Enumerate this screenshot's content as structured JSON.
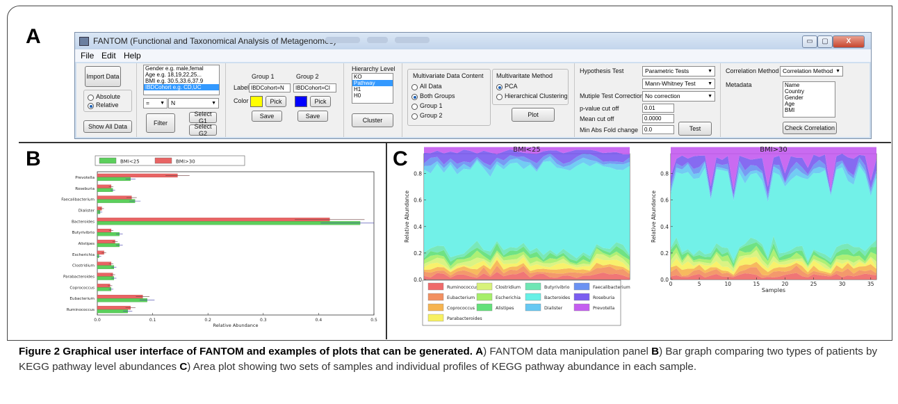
{
  "panels": {
    "a": "A",
    "b": "B",
    "c": "C"
  },
  "window": {
    "title": "FANTOM (Functional and Taxonomical Analysis of Metagenomes)",
    "menu": [
      "File",
      "Edit",
      "Help"
    ],
    "controls": {
      "minimize": "▭",
      "maximize": "▢",
      "close": "X"
    }
  },
  "data_panel": {
    "import_label": "Import Data",
    "absolute_label": "Absolute",
    "relative_label": "Relative",
    "show_all_label": "Show All Data",
    "metadata_list": [
      "Gender e.g. male,femal",
      "Age e.g. 18,19,22,25...",
      "BMI e.g. 30.5,33.6,37.9",
      "IBDCohort e.g. CD,UC"
    ],
    "operator_value": "=",
    "filter_value": "N",
    "filter_label": "Filter",
    "select_g1_label": "Select G1",
    "select_g2_label": "Select G2"
  },
  "groups": {
    "group1_label": "Group 1",
    "group2_label": "Group 2",
    "label_caption": "Label",
    "color_caption": "Color",
    "group1_value": "IBDCohort=N",
    "group2_value": "IBDCohort=CI",
    "pick_label": "Pick",
    "save_label": "Save",
    "group1_color": "#ffff00",
    "group2_color": "#0000ff"
  },
  "hierarchy": {
    "title": "Hierarchy Level",
    "levels": [
      "KO",
      "Pathway",
      "H1",
      "H0"
    ],
    "selected": 1,
    "cluster_label": "Cluster"
  },
  "multivariate": {
    "content_title": "Multivariate Data Content",
    "content_options": [
      "All Data",
      "Both Groups",
      "Group 1",
      "Group 2"
    ],
    "content_selected": 1,
    "method_title": "Multivaritate Method",
    "method_options": [
      "PCA",
      "Hierarchical Clustering"
    ],
    "method_selected": 0,
    "plot_label": "Plot"
  },
  "hypothesis": {
    "test_label": "Hypothesis Test",
    "test_value": "Parametric Tests",
    "test2_value": "Mann-Whitney Test",
    "correction_label": "Mutiple Test Correction",
    "correction_value": "No correction",
    "pvalue_label": "p-value cut off",
    "pvalue_value": "0.01",
    "mean_label": "Mean cut off",
    "mean_value": "0.0000",
    "fold_label": "Min Abs Fold change",
    "fold_value": "0.0",
    "test_button": "Test"
  },
  "correlation": {
    "method_label": "Correlation Method",
    "method_value": "Correlation Method",
    "metadata_label": "Metadata",
    "metadata_list": [
      "Name",
      "Country",
      "Gender",
      "Age",
      "BMI"
    ],
    "check_label": "Check Correlation"
  },
  "caption": {
    "bold": "Figure 2 Graphical user interface of FANTOM and examples of plots that can be generated.",
    "p1_letter": "A",
    "p1_text": ") FANTOM data manipulation panel ",
    "p2_letter": "B",
    "p2_text": ") Bar graph comparing two types of patients by KEGG pathway level abundances ",
    "p3_letter": "C",
    "p3_text": ") Area plot showing two sets of samples and individual profiles of KEGG pathway abundance in each sample."
  },
  "chart_data": [
    {
      "type": "bar",
      "orientation": "horizontal",
      "categories": [
        "Prevotella",
        "Roseburia",
        "Faecalibacterium",
        "Dialister",
        "Bacteroides",
        "Butyrivibrio",
        "Alistipes",
        "Escherichia",
        "Clostridium",
        "Parabacteroides",
        "Coprococcus",
        "Eubacterium",
        "Ruminococcus"
      ],
      "series": [
        {
          "name": "BMI<25",
          "color": "#5ccf5c",
          "values": [
            0.06,
            0.028,
            0.068,
            0.005,
            0.475,
            0.04,
            0.04,
            0.003,
            0.03,
            0.03,
            0.025,
            0.09,
            0.055
          ]
        },
        {
          "name": "BMI>30",
          "color": "#e86464",
          "values": [
            0.145,
            0.025,
            0.062,
            0.008,
            0.42,
            0.025,
            0.032,
            0.012,
            0.025,
            0.028,
            0.023,
            0.082,
            0.06
          ]
        }
      ],
      "xlabel": "Relative Abundance",
      "xlim": [
        0,
        0.5
      ],
      "xticks": [
        "0.0",
        "0.1",
        "0.2",
        "0.3",
        "0.4",
        "0.5"
      ],
      "legend": "top"
    },
    {
      "type": "area",
      "charts": [
        "BMI<25",
        "BMI>30"
      ],
      "ylabel": "Relative Abundance",
      "xlabel": "Samples",
      "yticks": [
        "0.0",
        "0.2",
        "0.4",
        "0.6",
        "0.8"
      ],
      "xticks": [
        "0",
        "5",
        "10",
        "15",
        "20",
        "25",
        "30",
        "35"
      ],
      "ylim": [
        0,
        1
      ],
      "xlim_left": [
        0,
        31
      ],
      "xlim_right": [
        0,
        36
      ],
      "legend": "bottom",
      "series": [
        {
          "name": "Ruminococcus",
          "color": "#ef6a6a"
        },
        {
          "name": "Eubacterium",
          "color": "#f29060"
        },
        {
          "name": "Coprococcus",
          "color": "#f6b450"
        },
        {
          "name": "Parabacteroides",
          "color": "#f7f060"
        },
        {
          "name": "Clostridium",
          "color": "#d7f27a"
        },
        {
          "name": "Escherichia",
          "color": "#a6ef6a"
        },
        {
          "name": "Alistipes",
          "color": "#63e07a"
        },
        {
          "name": "Butyrivibrio",
          "color": "#6ee6b4"
        },
        {
          "name": "Bacteroides",
          "color": "#66f0e6"
        },
        {
          "name": "Dialister",
          "color": "#66c8f2"
        },
        {
          "name": "Faecalibacterium",
          "color": "#6b92f2"
        },
        {
          "name": "Roseburia",
          "color": "#7c5ef0"
        },
        {
          "name": "Prevotella",
          "color": "#c45ef0"
        }
      ]
    }
  ]
}
